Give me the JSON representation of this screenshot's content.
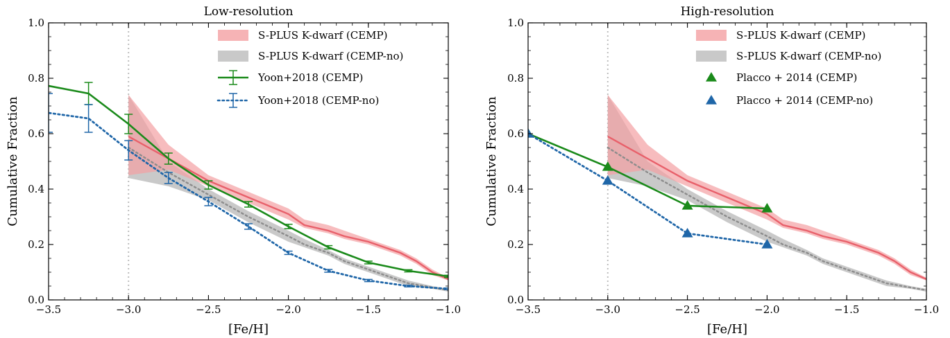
{
  "chart_data": [
    {
      "type": "line",
      "title": "Low-resolution",
      "xlabel": "[Fe/H]",
      "ylabel": "Cumulative Fraction",
      "xlim": [
        -3.5,
        -1.0
      ],
      "ylim": [
        0.0,
        1.0
      ],
      "xticks": [
        "−3.5",
        "−3.0",
        "−2.5",
        "−2.0",
        "−1.5",
        "−1.0"
      ],
      "yticks": [
        "0.0",
        "0.2",
        "0.4",
        "0.6",
        "0.8",
        "1.0"
      ],
      "vline": -3.0,
      "legend_position": "top-right",
      "bands": [
        {
          "name": "S-PLUS K-dwarf (CEMP)",
          "color": "#f4a0a3",
          "line_color": "#e8606a",
          "line_style": "solid",
          "x": [
            -3.0,
            -2.75,
            -2.5,
            -2.25,
            -2.0,
            -1.9,
            -1.75,
            -1.65,
            -1.5,
            -1.4,
            -1.3,
            -1.2,
            -1.1,
            -1.0
          ],
          "mid": [
            0.59,
            0.51,
            0.43,
            0.37,
            0.31,
            0.27,
            0.25,
            0.23,
            0.21,
            0.19,
            0.17,
            0.14,
            0.1,
            0.075
          ],
          "upper": [
            0.74,
            0.56,
            0.45,
            0.39,
            0.33,
            0.29,
            0.27,
            0.25,
            0.22,
            0.2,
            0.18,
            0.15,
            0.11,
            0.08
          ],
          "lower": [
            0.45,
            0.47,
            0.41,
            0.35,
            0.29,
            0.26,
            0.24,
            0.22,
            0.2,
            0.18,
            0.16,
            0.13,
            0.09,
            0.07
          ]
        },
        {
          "name": "S-PLUS K-dwarf (CEMP-no)",
          "color": "#c0c0c0",
          "line_color": "#8c8c8c",
          "line_style": "dotted",
          "x": [
            -3.0,
            -2.75,
            -2.5,
            -2.25,
            -2.0,
            -1.9,
            -1.75,
            -1.65,
            -1.5,
            -1.4,
            -1.25,
            -1.1,
            -1.0
          ],
          "mid": [
            0.55,
            0.46,
            0.38,
            0.3,
            0.23,
            0.2,
            0.17,
            0.14,
            0.11,
            0.09,
            0.06,
            0.045,
            0.035
          ],
          "upper": [
            0.74,
            0.5,
            0.4,
            0.32,
            0.25,
            0.22,
            0.18,
            0.15,
            0.12,
            0.1,
            0.07,
            0.05,
            0.04
          ],
          "lower": [
            0.44,
            0.41,
            0.36,
            0.28,
            0.21,
            0.19,
            0.16,
            0.13,
            0.1,
            0.08,
            0.05,
            0.04,
            0.03
          ]
        }
      ],
      "series": [
        {
          "name": "Yoon+2018 (CEMP)",
          "color": "#1a8a1a",
          "line_style": "solid",
          "marker": "errorbar",
          "x": [
            -3.75,
            -3.25,
            -3.0,
            -2.75,
            -2.5,
            -2.25,
            -2.0,
            -1.75,
            -1.5,
            -1.25,
            -1.0
          ],
          "y": [
            0.8,
            0.745,
            0.635,
            0.51,
            0.415,
            0.345,
            0.265,
            0.19,
            0.135,
            0.105,
            0.085
          ],
          "err": [
            0.04,
            0.04,
            0.035,
            0.02,
            0.015,
            0.01,
            0.008,
            0.006,
            0.005,
            0.004,
            0.004
          ]
        },
        {
          "name": "Yoon+2018 (CEMP-no)",
          "color": "#1f66a8",
          "line_style": "dotted",
          "marker": "errorbar",
          "x": [
            -3.75,
            -3.5,
            -3.25,
            -3.0,
            -2.75,
            -2.5,
            -2.25,
            -2.0,
            -1.75,
            -1.5,
            -1.25,
            -1.0
          ],
          "y": [
            0.685,
            0.675,
            0.655,
            0.54,
            0.44,
            0.355,
            0.265,
            0.17,
            0.105,
            0.07,
            0.05,
            0.04
          ],
          "err": [
            0.03,
            0.07,
            0.05,
            0.035,
            0.02,
            0.015,
            0.01,
            0.006,
            0.005,
            0.004,
            0.003,
            0.003
          ]
        }
      ]
    },
    {
      "type": "line",
      "title": "High-resolution",
      "xlabel": "[Fe/H]",
      "ylabel": "Cumulative Fraction",
      "xlim": [
        -3.5,
        -1.0
      ],
      "ylim": [
        0.0,
        1.0
      ],
      "xticks": [
        "−3.5",
        "−3.0",
        "−2.5",
        "−2.0",
        "−1.5",
        "−1.0"
      ],
      "yticks": [
        "0.0",
        "0.2",
        "0.4",
        "0.6",
        "0.8",
        "1.0"
      ],
      "vline": -3.0,
      "legend_position": "top-right",
      "bands": [
        {
          "name": "S-PLUS K-dwarf (CEMP)",
          "color": "#f4a0a3",
          "line_color": "#e8606a",
          "line_style": "solid",
          "x": [
            -3.0,
            -2.75,
            -2.5,
            -2.25,
            -2.0,
            -1.9,
            -1.75,
            -1.65,
            -1.5,
            -1.4,
            -1.3,
            -1.2,
            -1.1,
            -1.0
          ],
          "mid": [
            0.59,
            0.51,
            0.43,
            0.37,
            0.31,
            0.27,
            0.25,
            0.23,
            0.21,
            0.19,
            0.17,
            0.14,
            0.1,
            0.075
          ],
          "upper": [
            0.74,
            0.56,
            0.45,
            0.39,
            0.33,
            0.29,
            0.27,
            0.25,
            0.22,
            0.2,
            0.18,
            0.15,
            0.11,
            0.08
          ],
          "lower": [
            0.45,
            0.47,
            0.41,
            0.35,
            0.29,
            0.26,
            0.24,
            0.22,
            0.2,
            0.18,
            0.16,
            0.13,
            0.09,
            0.07
          ]
        },
        {
          "name": "S-PLUS K-dwarf (CEMP-no)",
          "color": "#c0c0c0",
          "line_color": "#8c8c8c",
          "line_style": "dotted",
          "x": [
            -3.0,
            -2.75,
            -2.5,
            -2.25,
            -2.0,
            -1.9,
            -1.75,
            -1.65,
            -1.5,
            -1.4,
            -1.25,
            -1.1,
            -1.0
          ],
          "mid": [
            0.55,
            0.46,
            0.38,
            0.3,
            0.23,
            0.2,
            0.17,
            0.14,
            0.11,
            0.09,
            0.06,
            0.045,
            0.035
          ],
          "upper": [
            0.74,
            0.5,
            0.4,
            0.32,
            0.25,
            0.22,
            0.18,
            0.15,
            0.12,
            0.1,
            0.07,
            0.05,
            0.04
          ],
          "lower": [
            0.44,
            0.41,
            0.36,
            0.28,
            0.21,
            0.19,
            0.16,
            0.13,
            0.1,
            0.08,
            0.05,
            0.04,
            0.03
          ]
        }
      ],
      "series": [
        {
          "name": "Placco + 2014 (CEMP)",
          "color": "#1a8a1a",
          "line_style": "solid",
          "marker": "triangle",
          "x": [
            -3.5,
            -3.0,
            -2.5,
            -2.0
          ],
          "y": [
            0.6,
            0.48,
            0.34,
            0.33
          ]
        },
        {
          "name": "Placco + 2014 (CEMP-no)",
          "color": "#1f66a8",
          "line_style": "dotted",
          "marker": "triangle",
          "x": [
            -3.5,
            -3.0,
            -2.5,
            -2.0
          ],
          "y": [
            0.6,
            0.43,
            0.24,
            0.2
          ]
        }
      ]
    }
  ]
}
